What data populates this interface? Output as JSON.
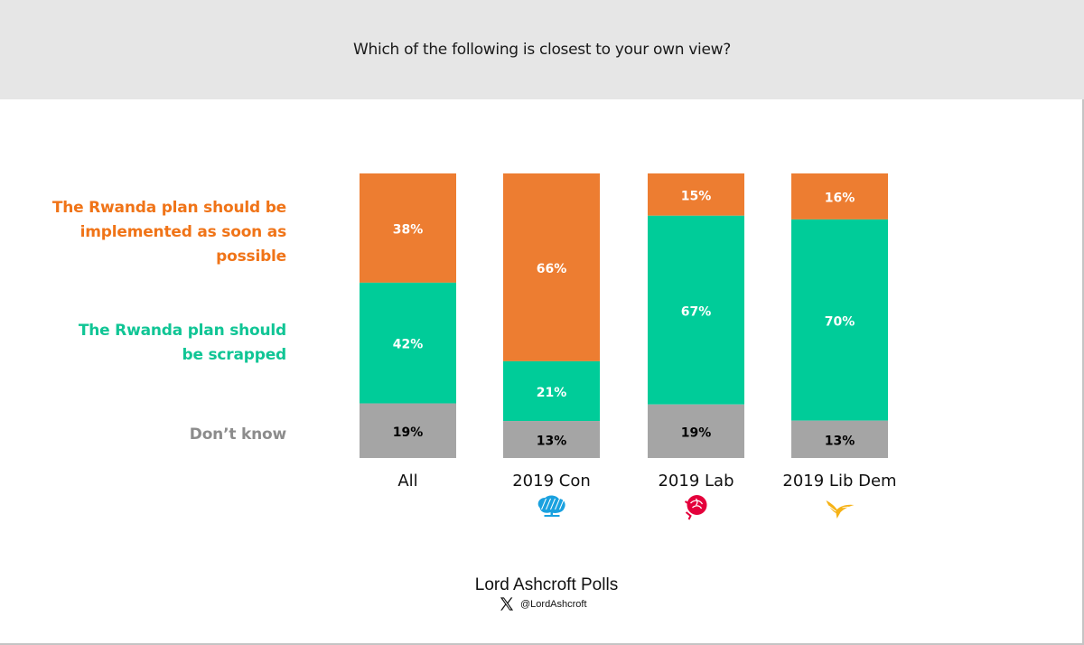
{
  "header": {
    "title": "Which of the following is closest to your own view?"
  },
  "colors": {
    "implemented": "#ed7d31",
    "implemented_label": "#f07418",
    "scrapped": "#00cc99",
    "scrapped_label": "#10c595",
    "dont_know": "#a5a5a5",
    "dont_know_label": "#8c8c8c",
    "con": "#1aa1df",
    "lab": "#e4003b",
    "libdem": "#f6b215"
  },
  "chart_data": {
    "type": "bar",
    "stacked": true,
    "percent": true,
    "title": "Which of the following is closest to your own view?",
    "categories": [
      "All",
      "2019 Con",
      "2019 Lab",
      "2019 Lib Dem"
    ],
    "category_icons": [
      "",
      "conservative-tree-icon",
      "labour-rose-icon",
      "libdem-bird-icon"
    ],
    "series": [
      {
        "name": "The Rwanda plan should be implemented as soon as possible",
        "key": "implemented",
        "values": [
          38,
          66,
          15,
          16
        ],
        "labels": [
          "38%",
          "66%",
          "15%",
          "16%"
        ],
        "label_color": "#ffffff"
      },
      {
        "name": "The Rwanda plan should be scrapped",
        "key": "scrapped",
        "values": [
          42,
          21,
          67,
          70
        ],
        "labels": [
          "42%",
          "21%",
          "67%",
          "70%"
        ],
        "label_color": "#ffffff"
      },
      {
        "name": "Don’t know",
        "key": "dont_know",
        "values": [
          19,
          13,
          19,
          13
        ],
        "labels": [
          "19%",
          "13%",
          "19%",
          "13%"
        ],
        "label_color": "#000000"
      }
    ],
    "legend": {
      "placement": "left",
      "lines": [
        [
          "The Rwanda plan should be",
          "implemented as soon as",
          "possible"
        ],
        [
          "The Rwanda plan should",
          "be scrapped"
        ],
        [
          "Don’t know"
        ]
      ]
    },
    "xlabel": "",
    "ylabel": "",
    "ylim": [
      0,
      100
    ],
    "grid": false
  },
  "footer": {
    "title": "Lord Ashcroft Polls",
    "handle": "@LordAshcroft",
    "icon": "x-logo-icon"
  }
}
